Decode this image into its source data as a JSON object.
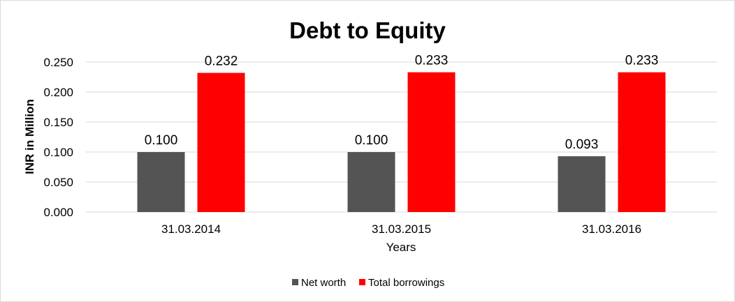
{
  "chart_data": {
    "type": "bar",
    "title": "Debt to Equity",
    "xlabel": "Years",
    "ylabel": "INR in Million",
    "categories": [
      "31.03.2014",
      "31.03.2015",
      "31.03.2016"
    ],
    "series": [
      {
        "name": "Net worth",
        "values": [
          0.1,
          0.1,
          0.093
        ],
        "labels": [
          "0.100",
          "0.100",
          "0.093"
        ],
        "color": "#545454"
      },
      {
        "name": "Total borrowings",
        "values": [
          0.232,
          0.233,
          0.233
        ],
        "labels": [
          "0.232",
          "0.233",
          "0.233"
        ],
        "color": "#ff0000"
      }
    ],
    "ylim": [
      0,
      0.25
    ],
    "yticks": [
      "0.000",
      "0.050",
      "0.100",
      "0.150",
      "0.200",
      "0.250"
    ],
    "grid": true,
    "legend": "bottom"
  }
}
